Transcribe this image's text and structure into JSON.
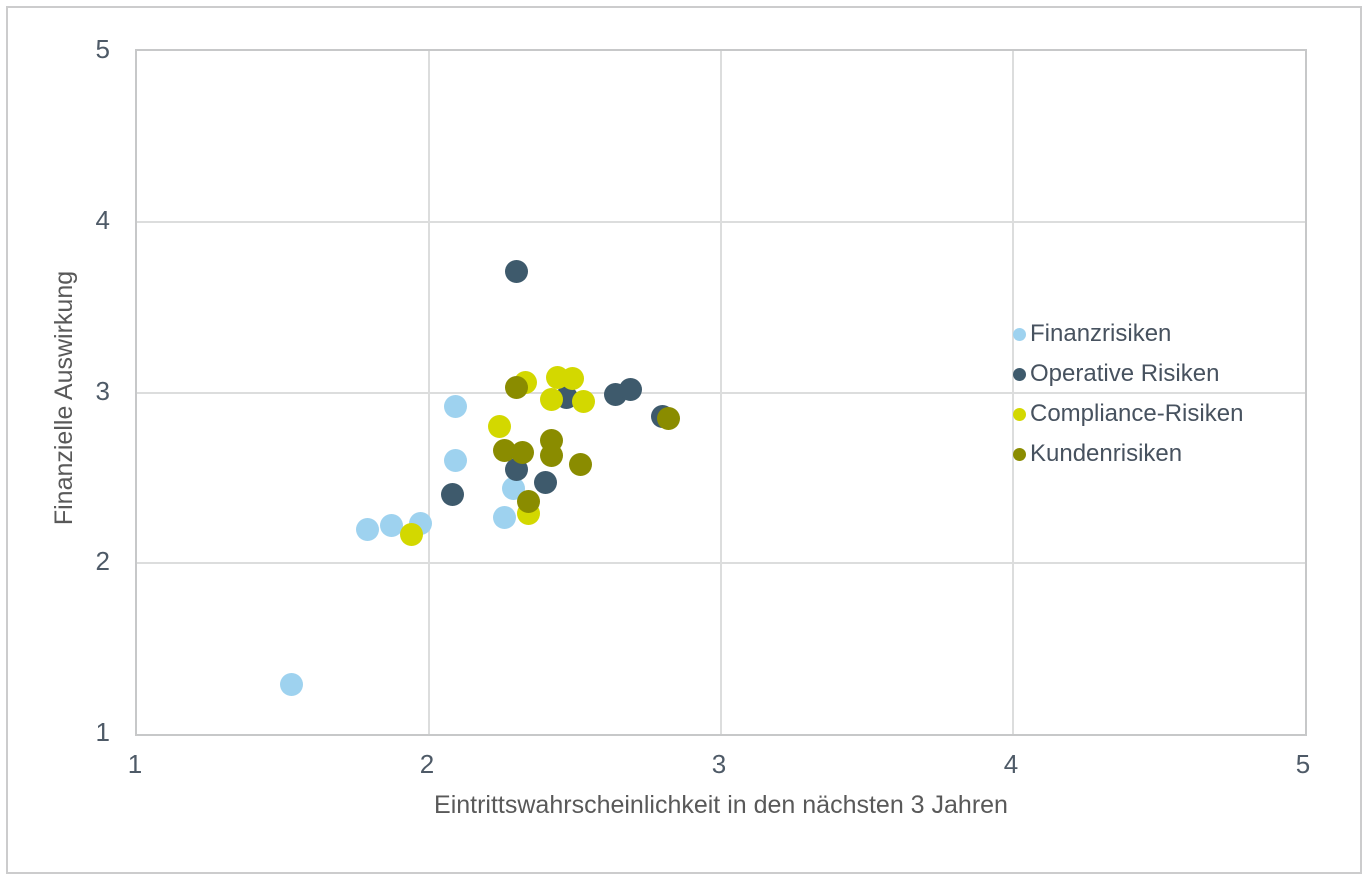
{
  "chart_data": {
    "type": "scatter",
    "title": "",
    "xlabel": "Eintrittswahrscheinlichkeit in den nächsten 3 Jahren",
    "ylabel": "Finanzielle Auswirkung",
    "xlim": [
      1,
      5
    ],
    "ylim": [
      1,
      5
    ],
    "xticks": [
      1,
      2,
      3,
      4,
      5
    ],
    "yticks": [
      1,
      2,
      3,
      4,
      5
    ],
    "grid": true,
    "legend_position": "middle-right",
    "series": [
      {
        "name": "Finanzrisiken",
        "color": "#9ed2ef",
        "points": [
          [
            1.53,
            1.29
          ],
          [
            1.79,
            2.2
          ],
          [
            1.87,
            2.22
          ],
          [
            1.97,
            2.23
          ],
          [
            2.09,
            2.6
          ],
          [
            2.09,
            2.92
          ],
          [
            2.26,
            2.27
          ],
          [
            2.29,
            2.44
          ]
        ]
      },
      {
        "name": "Operative Risiken",
        "color": "#3e5a6c",
        "points": [
          [
            2.08,
            2.4
          ],
          [
            2.3,
            2.55
          ],
          [
            2.3,
            3.71
          ],
          [
            2.4,
            2.47
          ],
          [
            2.47,
            2.97
          ],
          [
            2.64,
            2.99
          ],
          [
            2.69,
            3.02
          ],
          [
            2.8,
            2.86
          ]
        ]
      },
      {
        "name": "Compliance-Risiken",
        "color": "#d3d800",
        "points": [
          [
            1.94,
            2.17
          ],
          [
            2.24,
            2.8
          ],
          [
            2.33,
            3.06
          ],
          [
            2.34,
            2.29
          ],
          [
            2.42,
            2.96
          ],
          [
            2.44,
            3.09
          ],
          [
            2.49,
            3.08
          ],
          [
            2.53,
            2.95
          ]
        ]
      },
      {
        "name": "Kundenrisiken",
        "color": "#8a8c00",
        "points": [
          [
            2.26,
            2.66
          ],
          [
            2.3,
            3.03
          ],
          [
            2.32,
            2.65
          ],
          [
            2.34,
            2.36
          ],
          [
            2.42,
            2.63
          ],
          [
            2.42,
            2.72
          ],
          [
            2.52,
            2.58
          ],
          [
            2.82,
            2.85
          ]
        ]
      }
    ]
  }
}
